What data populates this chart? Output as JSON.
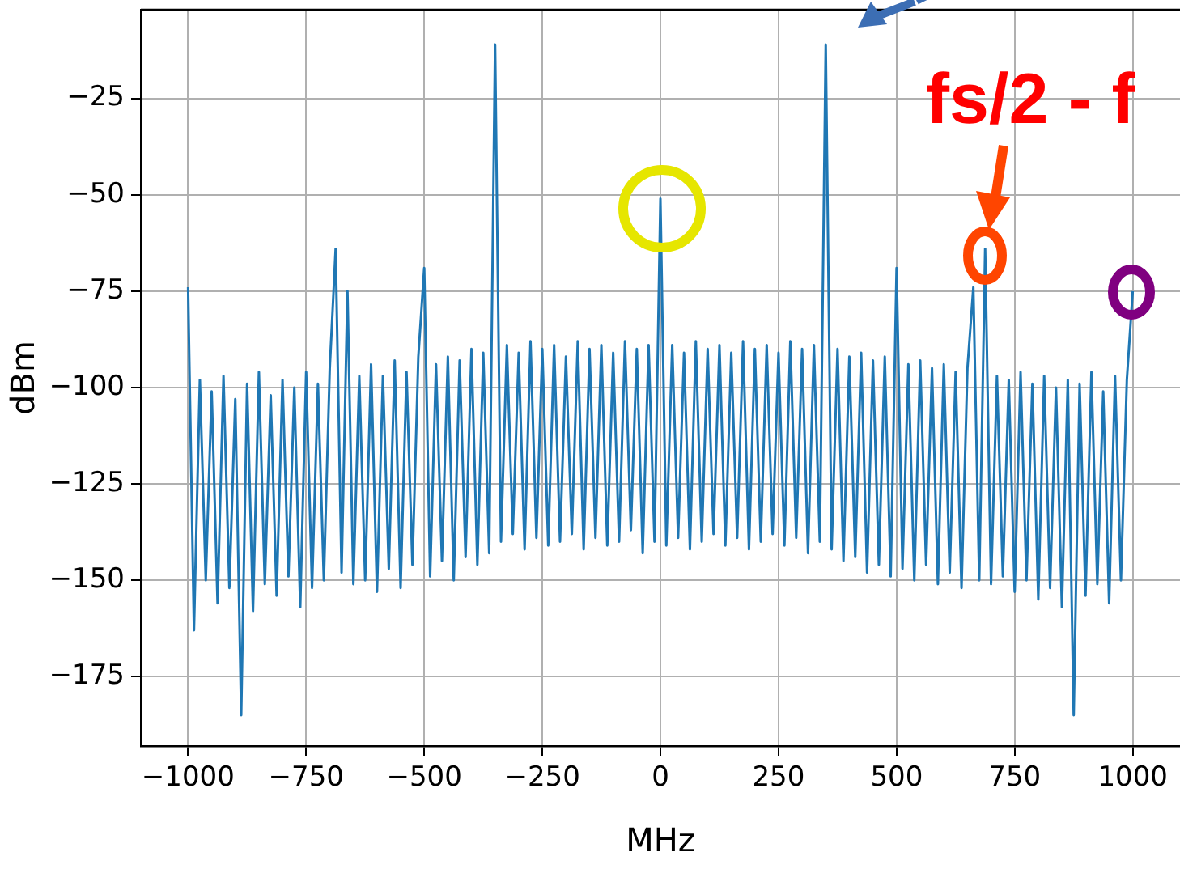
{
  "chart_data": {
    "type": "line",
    "xlabel": "MHz",
    "ylabel": "dBm",
    "xlim": [
      -1100,
      1100
    ],
    "xticks": [
      -1000,
      -750,
      -500,
      -250,
      0,
      250,
      500,
      750,
      1000
    ],
    "ylim": [
      -193,
      -2
    ],
    "yticks": [
      -175,
      -150,
      -125,
      -100,
      -75,
      -50,
      -25
    ],
    "grid": true,
    "legend": false,
    "marker": "none",
    "line_style": "solid",
    "annotations": [
      {
        "text": "fs/2 - f",
        "x": 687.5,
        "y": -64
      }
    ],
    "x": [
      -1000,
      -987.5,
      -975,
      -962.5,
      -950,
      -937.5,
      -925,
      -912.5,
      -900,
      -887.5,
      -875,
      -862.5,
      -850,
      -837.5,
      -825,
      -812.5,
      -800,
      -787.5,
      -775,
      -762.5,
      -750,
      -737.5,
      -725,
      -712.5,
      -700,
      -687.5,
      -675,
      -662.5,
      -650,
      -637.5,
      -625,
      -612.5,
      -600,
      -587.5,
      -575,
      -562.5,
      -550,
      -537.5,
      -525,
      -512.5,
      -500,
      -487.5,
      -475,
      -462.5,
      -450,
      -437.5,
      -425,
      -412.5,
      -400,
      -387.5,
      -375,
      -362.5,
      -350,
      -337.5,
      -325,
      -312.5,
      -300,
      -287.5,
      -275,
      -262.5,
      -250,
      -237.5,
      -225,
      -212.5,
      -200,
      -187.5,
      -175,
      -162.5,
      -150,
      -137.5,
      -125,
      -112.5,
      -100,
      -87.5,
      -75,
      -62.5,
      -50,
      -37.5,
      -25,
      -12.5,
      0,
      12.5,
      25,
      37.5,
      50,
      62.5,
      75,
      87.5,
      100,
      112.5,
      125,
      137.5,
      150,
      162.5,
      175,
      187.5,
      200,
      212.5,
      225,
      237.5,
      250,
      262.5,
      275,
      287.5,
      300,
      312.5,
      325,
      337.5,
      350,
      362.5,
      375,
      387.5,
      400,
      412.5,
      425,
      437.5,
      450,
      462.5,
      475,
      487.5,
      500,
      512.5,
      525,
      537.5,
      550,
      562.5,
      575,
      587.5,
      600,
      612.5,
      625,
      637.5,
      650,
      662.5,
      675,
      687.5,
      700,
      712.5,
      725,
      737.5,
      750,
      762.5,
      775,
      787.5,
      800,
      812.5,
      825,
      837.5,
      850,
      862.5,
      875,
      887.5,
      900,
      912.5,
      925,
      937.5,
      950,
      962.5,
      975,
      987.5,
      1000
    ],
    "series": [
      {
        "color": "#1f77b4",
        "values": [
          -74,
          -163,
          -98,
          -150,
          -101,
          -156,
          -97,
          -152,
          -103,
          -185,
          -99,
          -158,
          -96,
          -151,
          -102,
          -154,
          -98,
          -149,
          -100,
          -157,
          -96,
          -152,
          -99,
          -150,
          -95,
          -64,
          -148,
          -75,
          -151,
          -97,
          -150,
          -94,
          -153,
          -97,
          -147,
          -93,
          -152,
          -96,
          -146,
          -92,
          -69,
          -149,
          -94,
          -145,
          -92,
          -150,
          -93,
          -144,
          -90,
          -146,
          -91,
          -143,
          -11,
          -140,
          -89,
          -138,
          -91,
          -142,
          -88,
          -139,
          -90,
          -141,
          -89,
          -140,
          -92,
          -138,
          -88,
          -142,
          -90,
          -139,
          -89,
          -141,
          -91,
          -140,
          -88,
          -137,
          -90,
          -143,
          -89,
          -140,
          -51,
          -141,
          -89,
          -139,
          -91,
          -142,
          -88,
          -140,
          -90,
          -138,
          -89,
          -141,
          -91,
          -139,
          -88,
          -142,
          -90,
          -140,
          -89,
          -138,
          -91,
          -141,
          -88,
          -139,
          -90,
          -143,
          -89,
          -140,
          -11,
          -142,
          -90,
          -145,
          -92,
          -144,
          -91,
          -148,
          -93,
          -146,
          -92,
          -149,
          -69,
          -147,
          -94,
          -150,
          -93,
          -146,
          -95,
          -151,
          -94,
          -148,
          -96,
          -152,
          -95,
          -74,
          -150,
          -64,
          -151,
          -97,
          -149,
          -98,
          -153,
          -96,
          -150,
          -99,
          -155,
          -97,
          -152,
          -100,
          -157,
          -98,
          -185,
          -99,
          -154,
          -96,
          -151,
          -101,
          -156,
          -97,
          -150,
          -98,
          -75
        ]
      }
    ]
  }
}
